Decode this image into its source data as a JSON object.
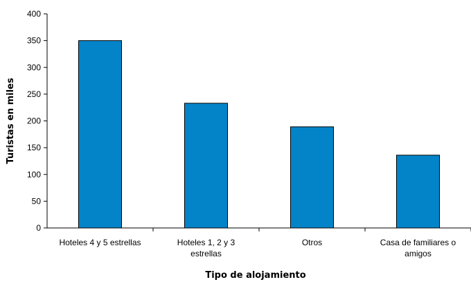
{
  "chart_data": {
    "type": "bar",
    "categories": [
      [
        "Hoteles 4 y 5 estrellas"
      ],
      [
        "Hoteles 1, 2 y 3",
        "estrellas"
      ],
      [
        "Otros"
      ],
      [
        "Casa de familiares o",
        "amigos"
      ]
    ],
    "values": [
      350,
      233,
      189,
      136
    ],
    "title": "",
    "xlabel": "Tipo de alojamiento",
    "ylabel": "Turistas en miles",
    "ylim": [
      0,
      400
    ],
    "yticks": [
      0,
      50,
      100,
      150,
      200,
      250,
      300,
      350,
      400
    ],
    "grid": false,
    "colors": {
      "bar": "#0484C8",
      "edge": "#000000"
    }
  }
}
